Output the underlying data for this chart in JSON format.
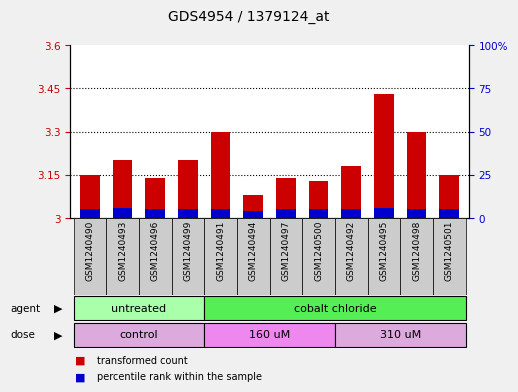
{
  "title": "GDS4954 / 1379124_at",
  "samples": [
    "GSM1240490",
    "GSM1240493",
    "GSM1240496",
    "GSM1240499",
    "GSM1240491",
    "GSM1240494",
    "GSM1240497",
    "GSM1240500",
    "GSM1240492",
    "GSM1240495",
    "GSM1240498",
    "GSM1240501"
  ],
  "transformed_count": [
    3.15,
    3.2,
    3.14,
    3.2,
    3.3,
    3.08,
    3.14,
    3.13,
    3.18,
    3.43,
    3.3,
    3.15
  ],
  "percentile_rank": [
    5,
    6,
    5,
    5,
    5,
    4,
    5,
    5,
    5,
    6,
    5,
    5
  ],
  "base_value": 3.0,
  "ylim_left": [
    3.0,
    3.6
  ],
  "ylim_right": [
    0,
    100
  ],
  "yticks_left": [
    3.0,
    3.15,
    3.3,
    3.45,
    3.6
  ],
  "yticks_right": [
    0,
    25,
    50,
    75,
    100
  ],
  "ytick_labels_left": [
    "3",
    "3.15",
    "3.3",
    "3.45",
    "3.6"
  ],
  "ytick_labels_right": [
    "0",
    "25",
    "50",
    "75",
    "100%"
  ],
  "hlines": [
    3.15,
    3.3,
    3.45
  ],
  "agent_groups": [
    {
      "label": "untreated",
      "start": 0,
      "end": 4,
      "color": "#aaffaa"
    },
    {
      "label": "cobalt chloride",
      "start": 4,
      "end": 12,
      "color": "#55ee55"
    }
  ],
  "dose_groups": [
    {
      "label": "control",
      "start": 0,
      "end": 4,
      "color": "#ddaadd"
    },
    {
      "label": "160 uM",
      "start": 4,
      "end": 8,
      "color": "#ee88ee"
    },
    {
      "label": "310 uM",
      "start": 8,
      "end": 12,
      "color": "#ddaadd"
    }
  ],
  "bar_color_red": "#cc0000",
  "bar_color_blue": "#0000cc",
  "bg_color": "#f0f0f0",
  "plot_bg": "#ffffff",
  "cell_bg": "#cccccc",
  "title_fontsize": 10,
  "tick_fontsize": 7.5,
  "label_fontsize": 8,
  "xtick_fontsize": 6.5,
  "left_axis_color": "#cc0000",
  "right_axis_color": "#0000cc"
}
